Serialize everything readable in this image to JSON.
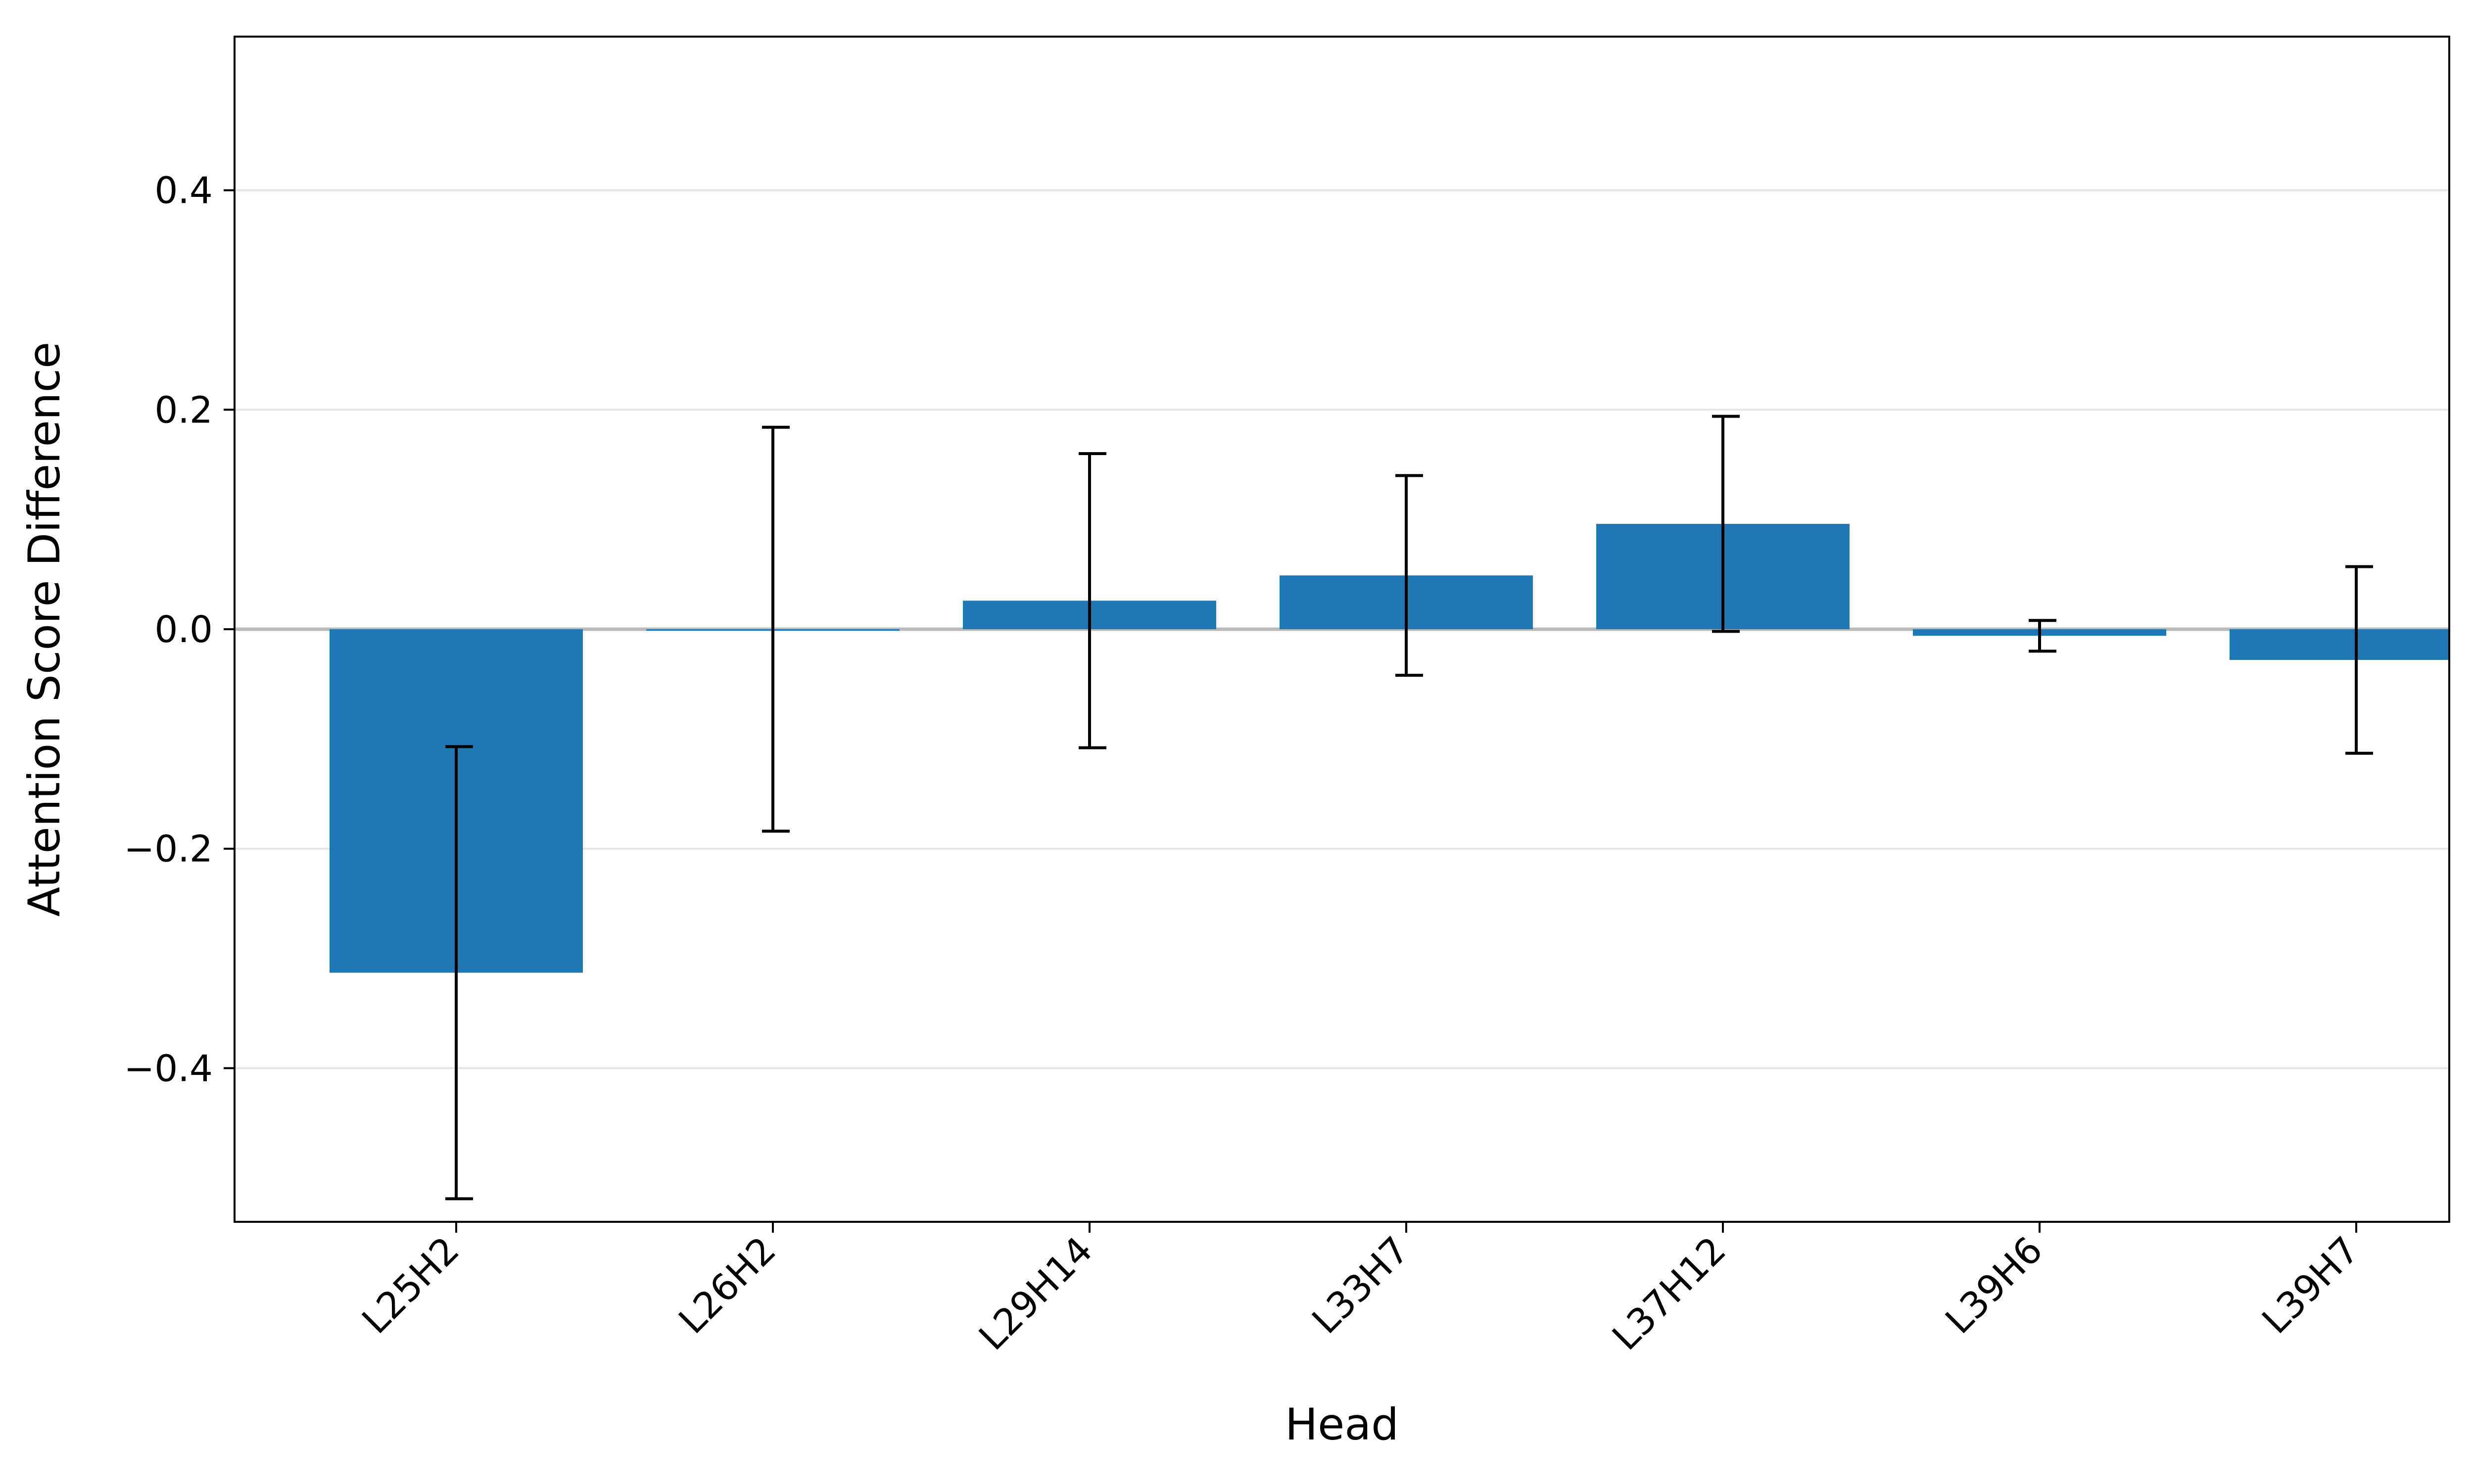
{
  "chart_data": {
    "type": "bar",
    "title": "",
    "xlabel": "Head",
    "ylabel": "Attention Score Difference",
    "categories": [
      "L25H2",
      "L26H2",
      "L29H14",
      "L33H7",
      "L37H12",
      "L39H6",
      "L39H7"
    ],
    "values": [
      -0.313,
      0.0,
      0.026,
      0.049,
      0.096,
      -0.006,
      -0.028
    ],
    "error": [
      0.206,
      0.184,
      0.134,
      0.091,
      0.098,
      0.014,
      0.085
    ],
    "ylim": [
      -0.54,
      0.54
    ],
    "yticks": [
      -0.4,
      -0.2,
      0.0,
      0.2,
      0.4
    ],
    "ytick_labels": [
      "−0.4",
      "−0.2",
      "0.0",
      "0.2",
      "0.4"
    ],
    "grid": true,
    "zero_line": true,
    "legend": "none",
    "colors": {
      "bar": "#1f77b4",
      "error_bar": "#000000",
      "grid": "#e6e6e6",
      "zero_line": "#bbbbbb",
      "axes": "#000000"
    }
  }
}
